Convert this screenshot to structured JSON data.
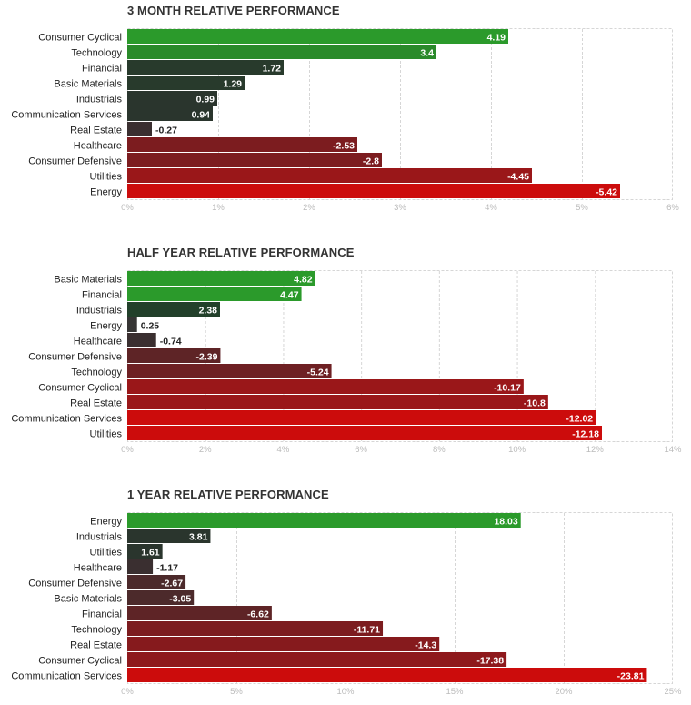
{
  "colors": {
    "grid": "#d6d6d6",
    "positive_bars": [
      "#2b9a2b",
      "#2a8a2a",
      "#234f2a",
      "#22402a",
      "#283a2c",
      "#2a352d",
      "#363534"
    ],
    "negative_bars": [
      "#3a2f30",
      "#4c2a2b",
      "#5e2426",
      "#6e2023",
      "#7c1c1f",
      "#861a1d",
      "#8e191c",
      "#9a1719",
      "#cc0c0c"
    ]
  },
  "chart_data": [
    {
      "type": "bar",
      "orientation": "horizontal",
      "title": "3 MONTH RELATIVE PERFORMANCE",
      "categories": [
        "Consumer Cyclical",
        "Technology",
        "Financial",
        "Basic Materials",
        "Industrials",
        "Communication Services",
        "Real Estate",
        "Healthcare",
        "Consumer Defensive",
        "Utilities",
        "Energy"
      ],
      "values": [
        4.19,
        3.4,
        1.72,
        1.29,
        0.99,
        0.94,
        -0.27,
        -2.53,
        -2.8,
        -4.45,
        -5.42
      ],
      "value_labels": [
        "4.19",
        "3.4",
        "1.72",
        "1.29",
        "0.99",
        "0.94",
        "-0.27",
        "-2.53",
        "-2.8",
        "-4.45",
        "-5.42"
      ],
      "xlim": [
        0,
        6
      ],
      "xticks": [
        "0%",
        "1%",
        "2%",
        "3%",
        "4%",
        "5%",
        "6%"
      ],
      "bar_length": "absolute value",
      "grid": true
    },
    {
      "type": "bar",
      "orientation": "horizontal",
      "title": "HALF YEAR RELATIVE PERFORMANCE",
      "categories": [
        "Basic Materials",
        "Financial",
        "Industrials",
        "Energy",
        "Healthcare",
        "Consumer Defensive",
        "Technology",
        "Consumer Cyclical",
        "Real Estate",
        "Communication Services",
        "Utilities"
      ],
      "values": [
        4.82,
        4.47,
        2.38,
        0.25,
        -0.74,
        -2.39,
        -5.24,
        -10.17,
        -10.8,
        -12.02,
        -12.18
      ],
      "value_labels": [
        "4.82",
        "4.47",
        "2.38",
        "0.25",
        "-0.74",
        "-2.39",
        "-5.24",
        "-10.17",
        "-10.8",
        "-12.02",
        "-12.18"
      ],
      "xlim": [
        0,
        14
      ],
      "xticks": [
        "0%",
        "2%",
        "4%",
        "6%",
        "8%",
        "10%",
        "12%",
        "14%"
      ],
      "bar_length": "absolute value",
      "grid": true
    },
    {
      "type": "bar",
      "orientation": "horizontal",
      "title": "1 YEAR RELATIVE PERFORMANCE",
      "categories": [
        "Energy",
        "Industrials",
        "Utilities",
        "Healthcare",
        "Consumer Defensive",
        "Basic Materials",
        "Financial",
        "Technology",
        "Real Estate",
        "Consumer Cyclical",
        "Communication Services"
      ],
      "values": [
        18.03,
        3.81,
        1.61,
        -1.17,
        -2.67,
        -3.05,
        -6.62,
        -11.71,
        -14.3,
        -17.38,
        -23.81
      ],
      "value_labels": [
        "18.03",
        "3.81",
        "1.61",
        "-1.17",
        "-2.67",
        "-3.05",
        "-6.62",
        "-11.71",
        "-14.3",
        "-17.38",
        "-23.81"
      ],
      "xlim": [
        0,
        25
      ],
      "xticks": [
        "0%",
        "5%",
        "10%",
        "15%",
        "20%",
        "25%"
      ],
      "bar_length": "absolute value",
      "grid": true
    }
  ]
}
